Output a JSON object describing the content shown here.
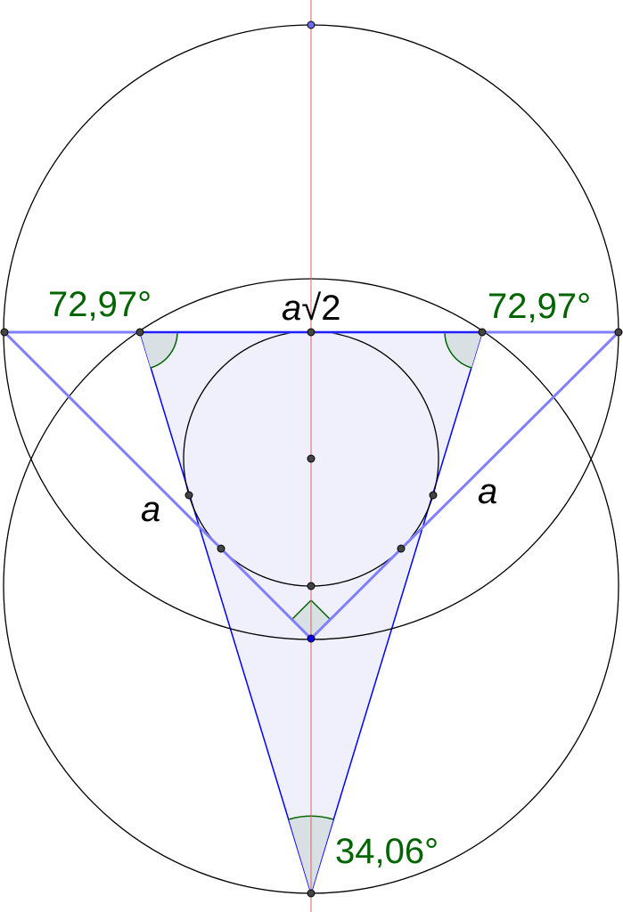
{
  "labels": {
    "angle_left": "72,97°",
    "angle_right": "72,97°",
    "angle_bottom": "34,06°",
    "side_top_var": "a",
    "side_top_rest": "√2",
    "side_left": "a",
    "side_right": "a"
  },
  "colors": {
    "triangle_stroke": "#0000ff",
    "triangle_fill": "#f0f0fc",
    "legs": "#8080ff",
    "axis": "#e06060",
    "angle_marks": "#006400",
    "angle_fill": "#d9e0e3"
  }
}
